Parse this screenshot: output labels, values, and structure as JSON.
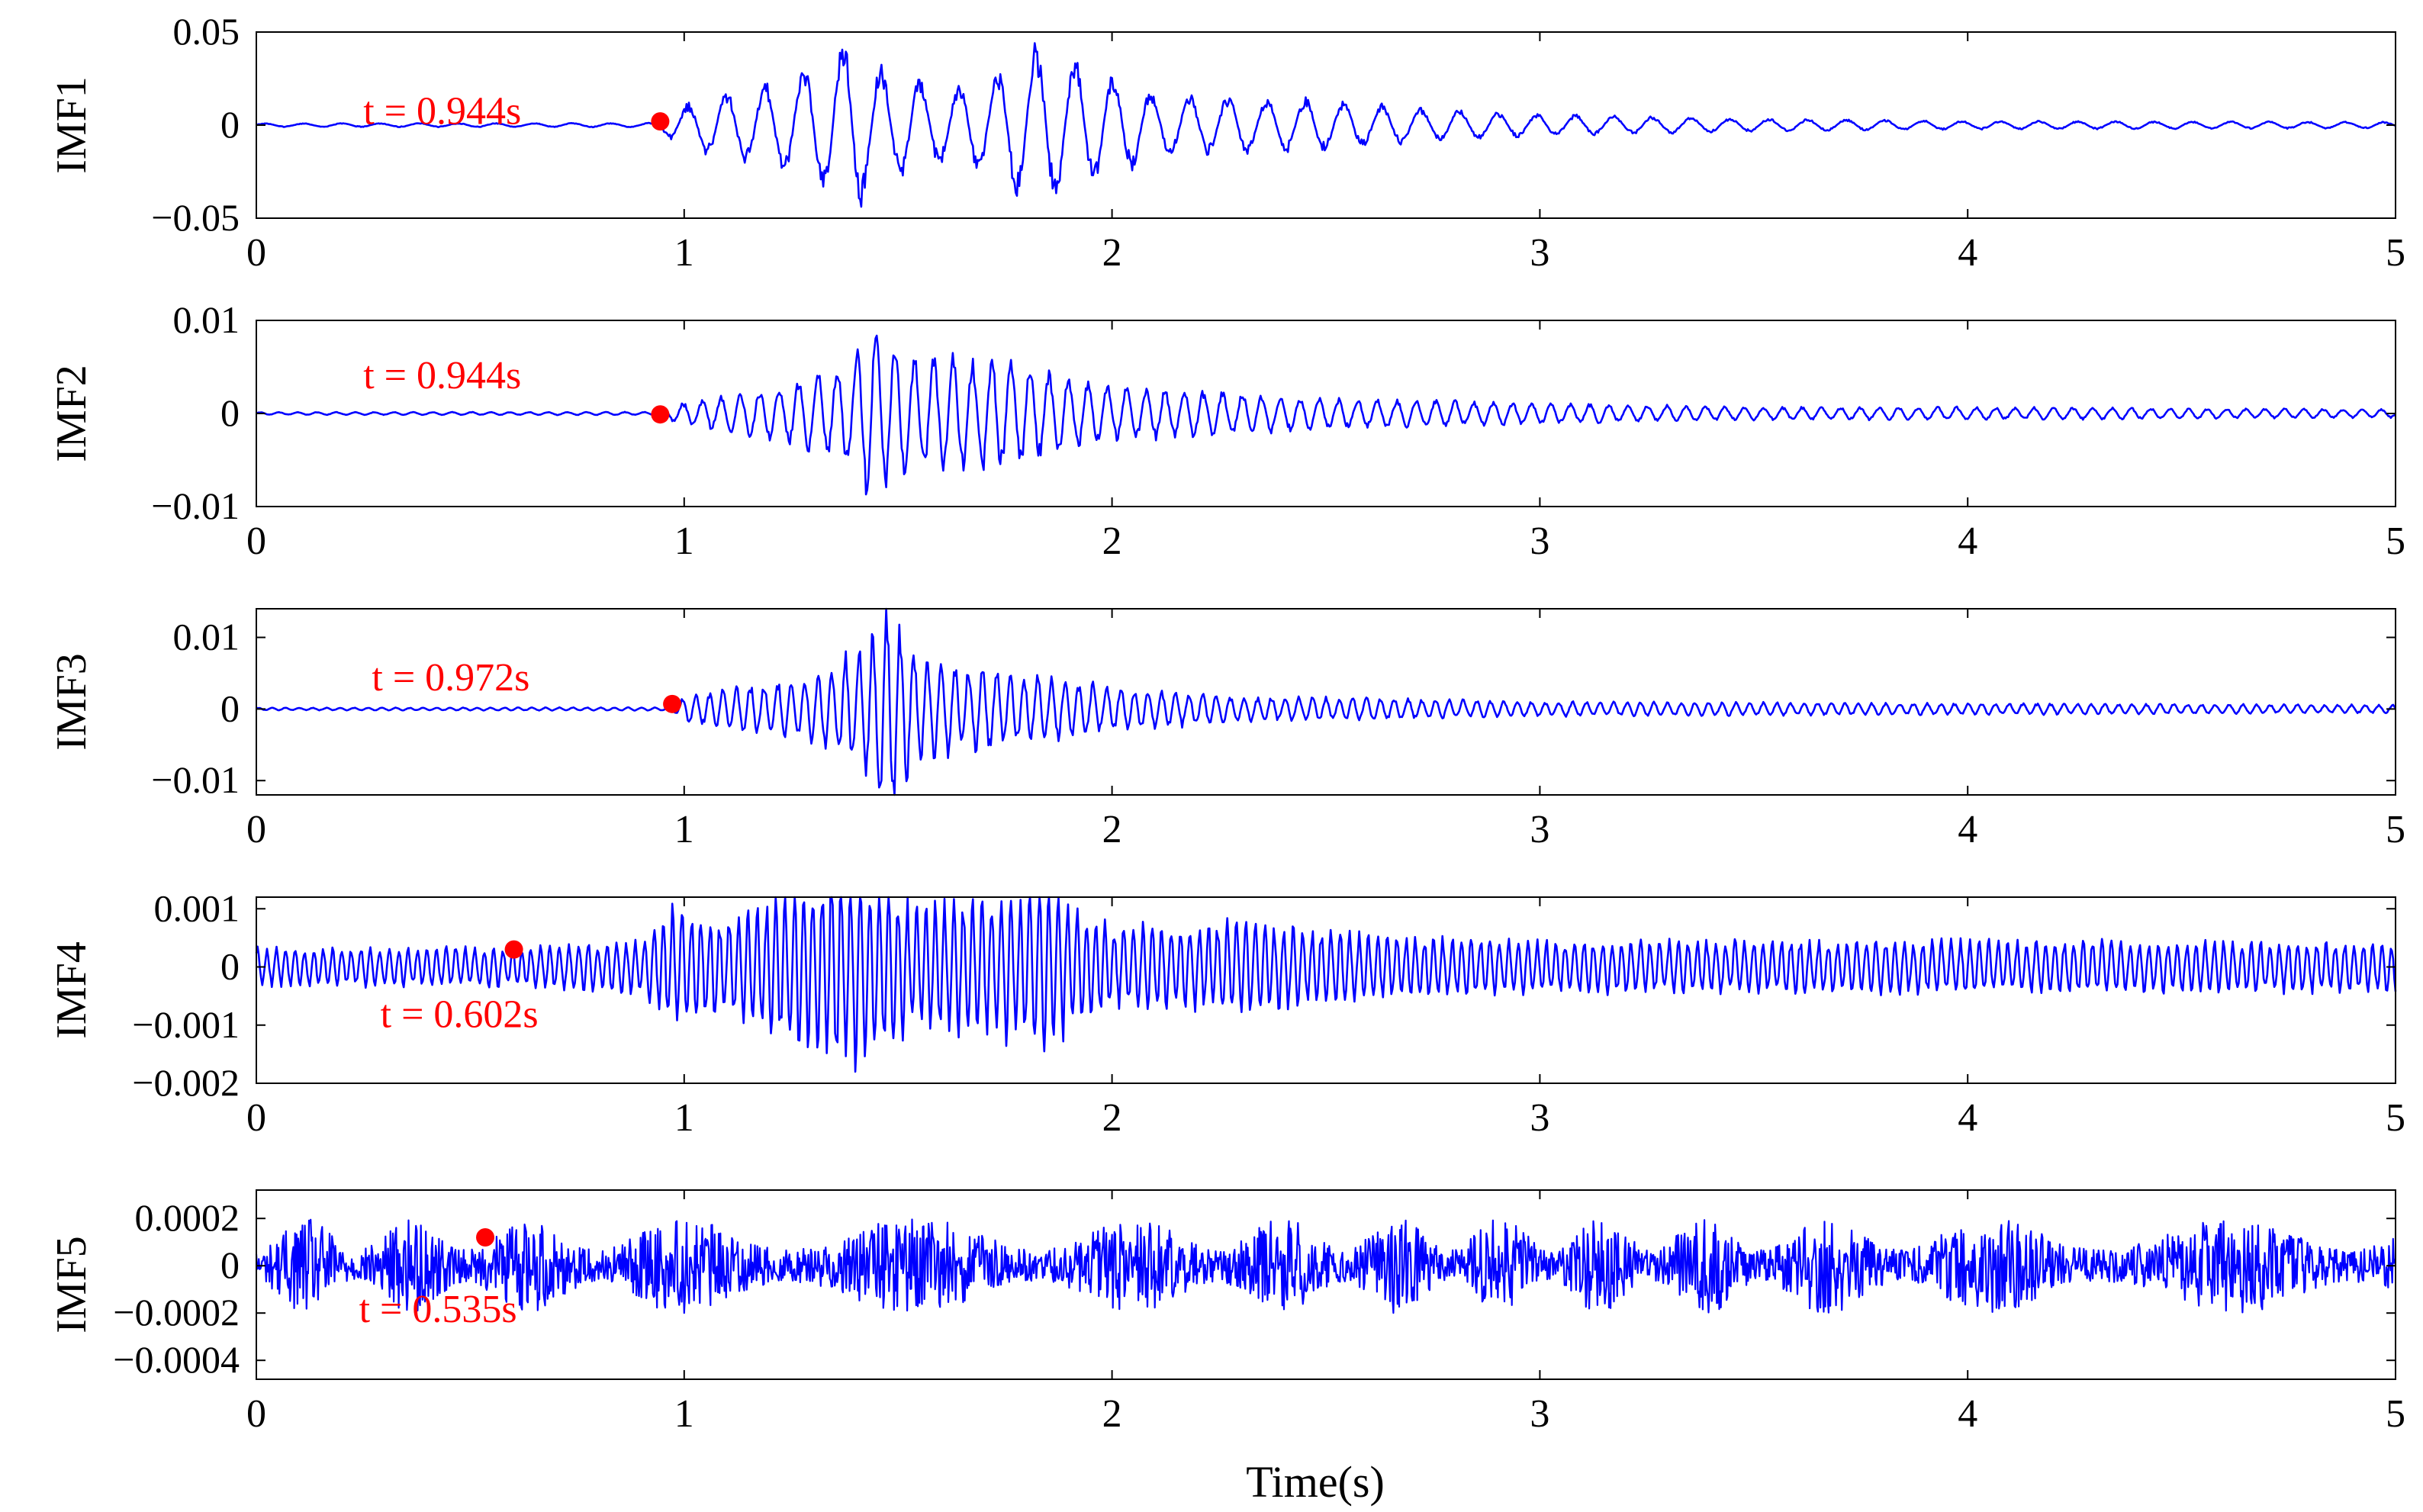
{
  "colors": {
    "signal": "#0000ff",
    "marker": "#ff0000",
    "axis": "#000000",
    "background": "#ffffff"
  },
  "xlabel": "Time(s)",
  "chart_data": [
    {
      "type": "line",
      "ylabel": "IMF1",
      "xlim": [
        0,
        5
      ],
      "ylim": [
        -0.05,
        0.05
      ],
      "xticks": [
        0,
        1,
        2,
        3,
        4,
        5
      ],
      "xtick_labels": [
        "0",
        "1",
        "2",
        "3",
        "4",
        "5"
      ],
      "yticks": [
        0.05,
        0,
        -0.05
      ],
      "ytick_labels": [
        "0.05",
        "0",
        "−0.05"
      ],
      "series": [
        {
          "envelope": [
            [
              0.0,
              0.0008
            ],
            [
              0.94,
              0.001
            ],
            [
              0.96,
              0.006
            ],
            [
              1.05,
              0.013
            ],
            [
              1.2,
              0.02
            ],
            [
              1.33,
              0.03
            ],
            [
              1.38,
              0.042
            ],
            [
              1.45,
              0.028
            ],
            [
              1.6,
              0.018
            ],
            [
              1.72,
              0.022
            ],
            [
              1.8,
              0.038
            ],
            [
              1.95,
              0.028
            ],
            [
              2.1,
              0.015
            ],
            [
              2.3,
              0.013
            ],
            [
              2.5,
              0.012
            ],
            [
              2.7,
              0.008
            ],
            [
              3.0,
              0.005
            ],
            [
              3.5,
              0.003
            ],
            [
              4.0,
              0.002
            ],
            [
              5.0,
              0.0015
            ]
          ],
          "period": 0.09
        }
      ],
      "marker": {
        "x": 0.944,
        "y": 0.002
      },
      "annotation": "t = 0.944s",
      "annotation_pos": [
        0.25,
        0.008
      ]
    },
    {
      "type": "line",
      "ylabel": "IMF2",
      "xlim": [
        0,
        5
      ],
      "ylim": [
        -0.01,
        0.01
      ],
      "xticks": [
        0,
        1,
        2,
        3,
        4,
        5
      ],
      "xtick_labels": [
        "0",
        "1",
        "2",
        "3",
        "4",
        "5"
      ],
      "yticks": [
        0.01,
        0,
        -0.01
      ],
      "ytick_labels": [
        "0.01",
        "0",
        "−0.01"
      ],
      "series": [
        {
          "envelope": [
            [
              0.0,
              0.00012
            ],
            [
              0.94,
              0.00015
            ],
            [
              0.97,
              0.0008
            ],
            [
              1.1,
              0.0018
            ],
            [
              1.25,
              0.0028
            ],
            [
              1.38,
              0.005
            ],
            [
              1.44,
              0.008
            ],
            [
              1.55,
              0.005
            ],
            [
              1.7,
              0.0055
            ],
            [
              1.85,
              0.004
            ],
            [
              2.0,
              0.0025
            ],
            [
              2.2,
              0.0022
            ],
            [
              2.5,
              0.0014
            ],
            [
              3.0,
              0.001
            ],
            [
              3.5,
              0.0006
            ],
            [
              4.0,
              0.0006
            ],
            [
              5.0,
              0.0004
            ]
          ],
          "period": 0.045
        }
      ],
      "marker": {
        "x": 0.944,
        "y": -0.0001
      },
      "annotation": "t = 0.944s",
      "annotation_pos": [
        0.25,
        0.0042
      ]
    },
    {
      "type": "line",
      "ylabel": "IMF3",
      "xlim": [
        0,
        5
      ],
      "ylim": [
        -0.012,
        0.014
      ],
      "xticks": [
        0,
        1,
        2,
        3,
        4,
        5
      ],
      "xtick_labels": [
        "0",
        "1",
        "2",
        "3",
        "4",
        "5"
      ],
      "yticks": [
        0.01,
        0,
        -0.01
      ],
      "ytick_labels": [
        "0.01",
        "0",
        "−0.01"
      ],
      "series": [
        {
          "envelope": [
            [
              0.0,
              0.00015
            ],
            [
              0.97,
              0.0002
            ],
            [
              1.0,
              0.0015
            ],
            [
              1.15,
              0.003
            ],
            [
              1.3,
              0.004
            ],
            [
              1.42,
              0.008
            ],
            [
              1.47,
              0.014
            ],
            [
              1.55,
              0.006
            ],
            [
              1.75,
              0.0045
            ],
            [
              2.0,
              0.0028
            ],
            [
              2.3,
              0.0015
            ],
            [
              2.6,
              0.0014
            ],
            [
              3.0,
              0.0009
            ],
            [
              3.5,
              0.0008
            ],
            [
              4.0,
              0.0007
            ],
            [
              5.0,
              0.0005
            ]
          ],
          "period": 0.032
        }
      ],
      "marker": {
        "x": 0.972,
        "y": 0.0007
      },
      "annotation": "t = 0.972s",
      "annotation_pos": [
        0.27,
        0.0045
      ]
    },
    {
      "type": "line",
      "ylabel": "IMF4",
      "xlim": [
        0,
        5
      ],
      "ylim": [
        -0.002,
        0.0012
      ],
      "xticks": [
        0,
        1,
        2,
        3,
        4,
        5
      ],
      "xtick_labels": [
        "0",
        "1",
        "2",
        "3",
        "4",
        "5"
      ],
      "yticks": [
        0.001,
        0,
        -0.001,
        -0.002
      ],
      "ytick_labels": [
        "0.001",
        "0",
        "−0.001",
        "−0.002"
      ],
      "series": [
        {
          "envelope": [
            [
              0.0,
              0.00028
            ],
            [
              0.6,
              0.0003
            ],
            [
              0.9,
              0.0004
            ],
            [
              0.97,
              0.0009
            ],
            [
              1.1,
              0.0007
            ],
            [
              1.25,
              0.0012
            ],
            [
              1.4,
              0.0015
            ],
            [
              1.55,
              0.0009
            ],
            [
              1.85,
              0.0012
            ],
            [
              2.0,
              0.0006
            ],
            [
              2.3,
              0.0007
            ],
            [
              2.6,
              0.0005
            ],
            [
              3.0,
              0.0004
            ],
            [
              3.5,
              0.0004
            ],
            [
              4.0,
              0.0004
            ],
            [
              5.0,
              0.00038
            ]
          ],
          "period": 0.022
        }
      ],
      "marker": {
        "x": 0.602,
        "y": 0.0003
      },
      "annotation": "t = 0.602s",
      "annotation_pos": [
        0.29,
        -0.0008
      ]
    },
    {
      "type": "line",
      "ylabel": "IMF5",
      "xlim": [
        0,
        5
      ],
      "ylim": [
        -0.00048,
        0.00032
      ],
      "xticks": [
        0,
        1,
        2,
        3,
        4,
        5
      ],
      "xtick_labels": [
        "0",
        "1",
        "2",
        "3",
        "4",
        "5"
      ],
      "yticks": [
        0.0002,
        0,
        -0.0002,
        -0.0004
      ],
      "ytick_labels": [
        "0.0002",
        "0",
        "−0.0002",
        "−0.0004"
      ],
      "series": [
        {
          "envelope": [
            [
              0.0,
              0.00015
            ],
            [
              5.0,
              0.00015
            ]
          ],
          "period": 0.012,
          "bursty": true
        }
      ],
      "marker": {
        "x": 0.535,
        "y": 0.00012
      },
      "annotation": "t = 0.535s",
      "annotation_pos": [
        0.24,
        -0.00018
      ]
    }
  ]
}
